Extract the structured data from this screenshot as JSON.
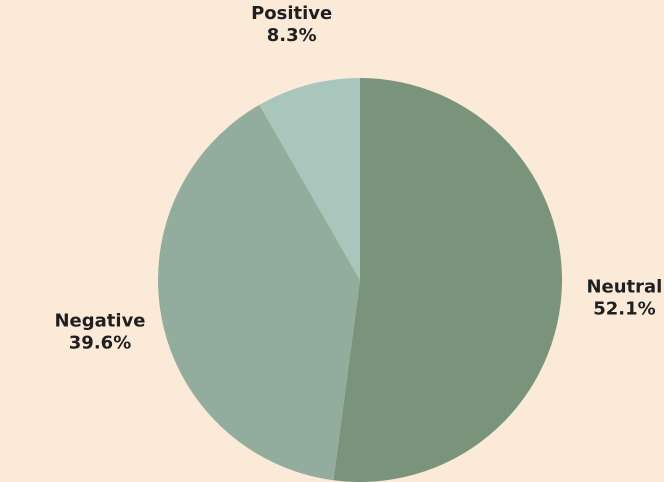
{
  "chart_data": {
    "type": "pie",
    "start_angle": "12 o'clock",
    "direction": "clockwise",
    "slices": [
      {
        "label": "Neutral",
        "value": 52.1,
        "value_label": "52.1%",
        "color": "#7a947c"
      },
      {
        "label": "Negative",
        "value": 39.6,
        "value_label": "39.6%",
        "color": "#92ad9d"
      },
      {
        "label": "Positive",
        "value": 8.3,
        "value_label": "8.3%",
        "color": "#a9c6bd"
      }
    ],
    "background_color": "#fbead8"
  }
}
